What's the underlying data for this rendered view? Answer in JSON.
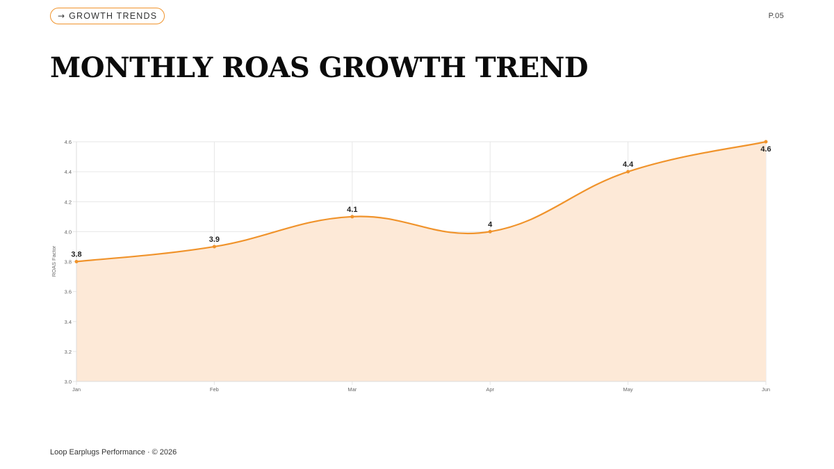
{
  "header": {
    "pill_icon": "arrow-right-icon",
    "pill_label": "GROWTH TRENDS",
    "page_number": "P.05"
  },
  "title": "MONTHLY ROAS GROWTH TREND",
  "footer": {
    "brand": "Loop Earplugs Performance",
    "separator": "·",
    "copyright": "© 2026"
  },
  "colors": {
    "accent": "#f0932b",
    "area_fill": "#fde9d7",
    "grid": "#e6e6e6",
    "text": "#111111"
  },
  "chart_data": {
    "type": "area",
    "categories": [
      "Jan",
      "Feb",
      "Mar",
      "Apr",
      "May",
      "Jun"
    ],
    "series": [
      {
        "values": [
          3.8,
          3.9,
          4.1,
          4.0,
          4.4,
          4.6
        ]
      }
    ],
    "data_labels": [
      "3.8",
      "3.9",
      "4.1",
      "4",
      "4.4",
      "4.6"
    ],
    "ylabel": "ROAS Factor",
    "xlabel": "",
    "ylim": [
      3.0,
      4.6
    ],
    "yticks": [
      "3.0",
      "3.2",
      "3.4",
      "3.6",
      "3.8",
      "4.0",
      "4.2",
      "4.4",
      "4.6"
    ],
    "grid": true,
    "legend": "none",
    "smooth": true
  }
}
